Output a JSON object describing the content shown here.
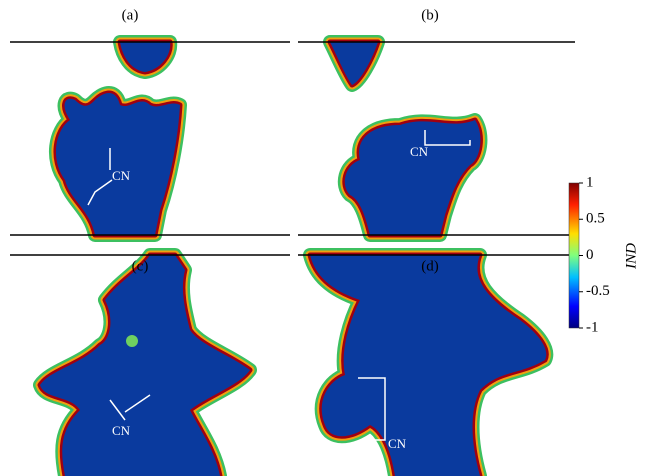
{
  "panels": [
    {
      "label": "(a)",
      "annotation": "CN"
    },
    {
      "label": "(b)",
      "annotation": "CN"
    },
    {
      "label": "(c)",
      "annotation": "CN"
    },
    {
      "label": "(d)",
      "annotation": "CN"
    }
  ],
  "colorbar": {
    "label": "IND",
    "lim": [
      -1,
      1
    ],
    "ticks": [
      1,
      0.5,
      0,
      -0.5,
      -1
    ]
  }
}
